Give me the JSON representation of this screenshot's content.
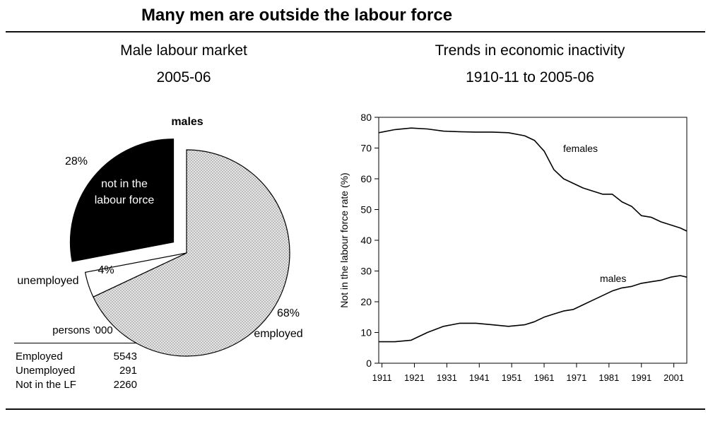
{
  "page": {
    "title": "Many men are outside the labour force"
  },
  "chart_data": [
    {
      "type": "pie",
      "title": "Male labour market",
      "subtitle": "2005-06",
      "legend_label": "males",
      "slices": [
        {
          "label": "employed",
          "value": 68,
          "pct_label": "68%",
          "color": "#d9d9d9",
          "pattern": "dotted"
        },
        {
          "label": "unemployed",
          "value": 4,
          "pct_label": "4%",
          "color": "#ffffff"
        },
        {
          "label": "not in the labour force",
          "label_lines": [
            "not in the",
            "labour force"
          ],
          "value": 28,
          "pct_label": "28%",
          "color": "#000000",
          "exploded": true
        }
      ],
      "table": {
        "header": "persons '000",
        "rows": [
          {
            "label": "Employed",
            "value": "5543"
          },
          {
            "label": "Unemployed",
            "value": "291"
          },
          {
            "label": "Not in the LF",
            "value": "2260"
          }
        ]
      }
    },
    {
      "type": "line",
      "title": "Trends in economic inactivity",
      "subtitle": "1910-11 to 2005-06",
      "ylabel": "Not in the labour force rate (%)",
      "xlabel": "",
      "xlim": [
        1910,
        2005
      ],
      "ylim": [
        0,
        80
      ],
      "yticks": [
        0,
        10,
        20,
        30,
        40,
        50,
        60,
        70,
        80
      ],
      "xticks": [
        1911,
        1921,
        1931,
        1941,
        1951,
        1961,
        1971,
        1981,
        1991,
        2001
      ],
      "grid": false,
      "series": [
        {
          "name": "females",
          "x": [
            1910,
            1915,
            1920,
            1925,
            1930,
            1935,
            1940,
            1945,
            1950,
            1955,
            1958,
            1961,
            1964,
            1967,
            1970,
            1973,
            1976,
            1979,
            1982,
            1985,
            1988,
            1991,
            1994,
            1997,
            2000,
            2003,
            2005
          ],
          "y": [
            75,
            76,
            76.5,
            76.2,
            75.5,
            75.3,
            75.2,
            75.2,
            75,
            74,
            72.5,
            69,
            63,
            60,
            58.5,
            57,
            56,
            55,
            55,
            52.5,
            51,
            48,
            47.5,
            46,
            45,
            44,
            43
          ]
        },
        {
          "name": "males",
          "x": [
            1910,
            1915,
            1920,
            1925,
            1930,
            1935,
            1940,
            1945,
            1950,
            1955,
            1958,
            1961,
            1964,
            1967,
            1970,
            1973,
            1976,
            1979,
            1982,
            1985,
            1988,
            1991,
            1994,
            1997,
            2000,
            2003,
            2005
          ],
          "y": [
            7,
            7,
            7.5,
            10,
            12,
            13,
            13,
            12.5,
            12,
            12.5,
            13.5,
            15,
            16,
            17,
            17.5,
            19,
            20.5,
            22,
            23.5,
            24.5,
            25,
            26,
            26.5,
            27,
            28,
            28.5,
            28
          ]
        }
      ]
    }
  ]
}
